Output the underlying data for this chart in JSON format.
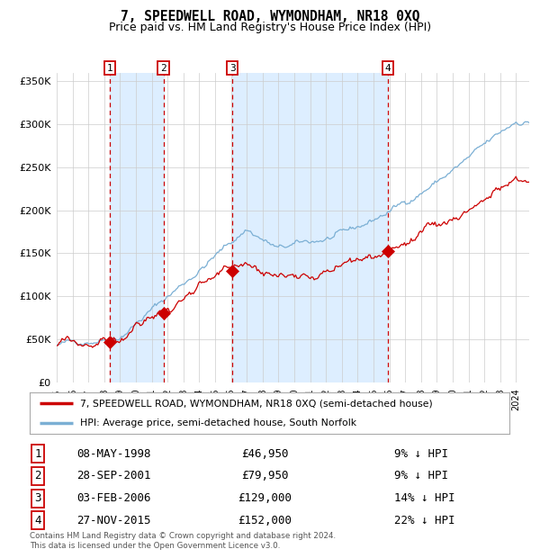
{
  "title": "7, SPEEDWELL ROAD, WYMONDHAM, NR18 0XQ",
  "subtitle": "Price paid vs. HM Land Registry's House Price Index (HPI)",
  "title_fontsize": 10.5,
  "subtitle_fontsize": 9,
  "ylim": [
    0,
    360000
  ],
  "xlim_start": 1995.0,
  "xlim_end": 2024.83,
  "yticks": [
    0,
    50000,
    100000,
    150000,
    200000,
    250000,
    300000,
    350000
  ],
  "ytick_labels": [
    "£0",
    "£50K",
    "£100K",
    "£150K",
    "£200K",
    "£250K",
    "£300K",
    "£350K"
  ],
  "transactions": [
    {
      "num": 1,
      "date_str": "08-MAY-1998",
      "year": 1998.36,
      "price": 46950,
      "pct": "9%"
    },
    {
      "num": 2,
      "date_str": "28-SEP-2001",
      "year": 2001.74,
      "price": 79950,
      "pct": "9%"
    },
    {
      "num": 3,
      "date_str": "03-FEB-2006",
      "year": 2006.09,
      "price": 129000,
      "pct": "14%"
    },
    {
      "num": 4,
      "date_str": "27-NOV-2015",
      "year": 2015.9,
      "price": 152000,
      "pct": "22%"
    }
  ],
  "hpi_color": "#7bafd4",
  "price_color": "#cc0000",
  "shade_color": "#ddeeff",
  "dashed_color": "#cc0000",
  "grid_color": "#cccccc",
  "bg_color": "#ffffff",
  "legend_label_price": "7, SPEEDWELL ROAD, WYMONDHAM, NR18 0XQ (semi-detached house)",
  "legend_label_hpi": "HPI: Average price, semi-detached house, South Norfolk",
  "footer1": "Contains HM Land Registry data © Crown copyright and database right 2024.",
  "footer2": "This data is licensed under the Open Government Licence v3.0."
}
